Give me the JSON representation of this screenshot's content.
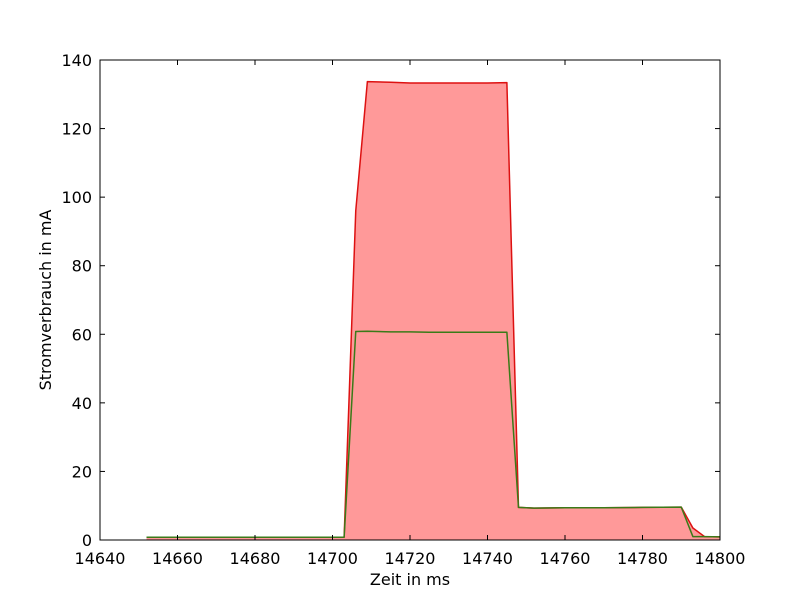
{
  "chart_data": {
    "type": "area",
    "title": "",
    "xlabel": "Zeit in ms",
    "ylabel": "Stromverbrauch in mA",
    "xlim": [
      14640,
      14800
    ],
    "ylim": [
      0,
      140
    ],
    "xticks": [
      14640,
      14660,
      14680,
      14700,
      14720,
      14740,
      14760,
      14780,
      14800
    ],
    "yticks": [
      0,
      20,
      40,
      60,
      80,
      100,
      120,
      140
    ],
    "grid": false,
    "legend": "none",
    "series": [
      {
        "color": "#dd1111",
        "fill_color": "#ff9999",
        "filled": true,
        "x": [
          14652,
          14660,
          14670,
          14680,
          14690,
          14700,
          14703,
          14706,
          14709,
          14715,
          14720,
          14725,
          14730,
          14735,
          14740,
          14745,
          14748,
          14752,
          14760,
          14770,
          14780,
          14790,
          14793,
          14796,
          14800
        ],
        "y": [
          0.8,
          0.8,
          0.8,
          0.8,
          0.8,
          0.8,
          0.8,
          96,
          133.7,
          133.5,
          133.3,
          133.3,
          133.3,
          133.3,
          133.3,
          133.4,
          9.5,
          9.3,
          9.4,
          9.4,
          9.5,
          9.6,
          3.5,
          1,
          0.9
        ]
      },
      {
        "color": "#3a7a18",
        "filled": false,
        "x": [
          14652,
          14660,
          14670,
          14680,
          14690,
          14700,
          14703,
          14706,
          14709,
          14715,
          14720,
          14725,
          14730,
          14735,
          14740,
          14745,
          14748,
          14752,
          14760,
          14770,
          14780,
          14790,
          14793,
          14796,
          14800
        ],
        "y": [
          0.8,
          0.8,
          0.8,
          0.8,
          0.8,
          0.8,
          0.8,
          60.8,
          60.9,
          60.7,
          60.7,
          60.6,
          60.6,
          60.6,
          60.6,
          60.6,
          9.5,
          9.3,
          9.4,
          9.4,
          9.5,
          9.6,
          1,
          1,
          0.9
        ]
      }
    ]
  }
}
